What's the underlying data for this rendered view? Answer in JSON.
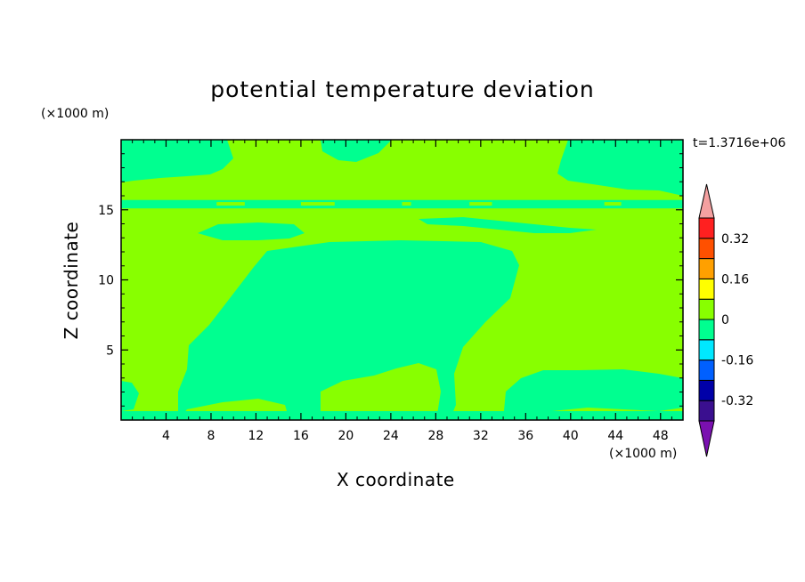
{
  "chart_data": {
    "type": "heatmap",
    "title": "potential temperature deviation",
    "xlabel": "X coordinate",
    "ylabel": "Z coordinate",
    "x_unit": "(×1000 m)",
    "y_unit": "(×1000 m)",
    "time_label": "t=1.3716e+06",
    "xlim": [
      0,
      50
    ],
    "ylim": [
      0,
      20
    ],
    "xticks": [
      4,
      8,
      12,
      16,
      20,
      24,
      28,
      32,
      36,
      40,
      44,
      48
    ],
    "yticks": [
      5,
      10,
      15
    ],
    "colorbar": {
      "levels": [
        -0.4,
        -0.32,
        -0.24,
        -0.16,
        -0.08,
        0,
        0.08,
        0.16,
        0.24,
        0.32,
        0.4
      ],
      "tick_labels": [
        "0.32",
        "0.16",
        "0",
        "-0.16",
        "-0.32"
      ],
      "tick_values": [
        0.32,
        0.16,
        0,
        -0.16,
        -0.32
      ],
      "colors": [
        "#3a0f8f",
        "#0000a8",
        "#0060ff",
        "#00e8ff",
        "#00ff90",
        "#88ff00",
        "#ffff00",
        "#ffa000",
        "#ff5000",
        "#ff2020"
      ],
      "over_color": "#f4a0a0",
      "under_color": "#7a10b0"
    },
    "field": {
      "class_low": "-0.08 to 0",
      "class_high": "0 to 0.08",
      "low_color": "#00ff90",
      "high_color": "#88ff00"
    }
  }
}
